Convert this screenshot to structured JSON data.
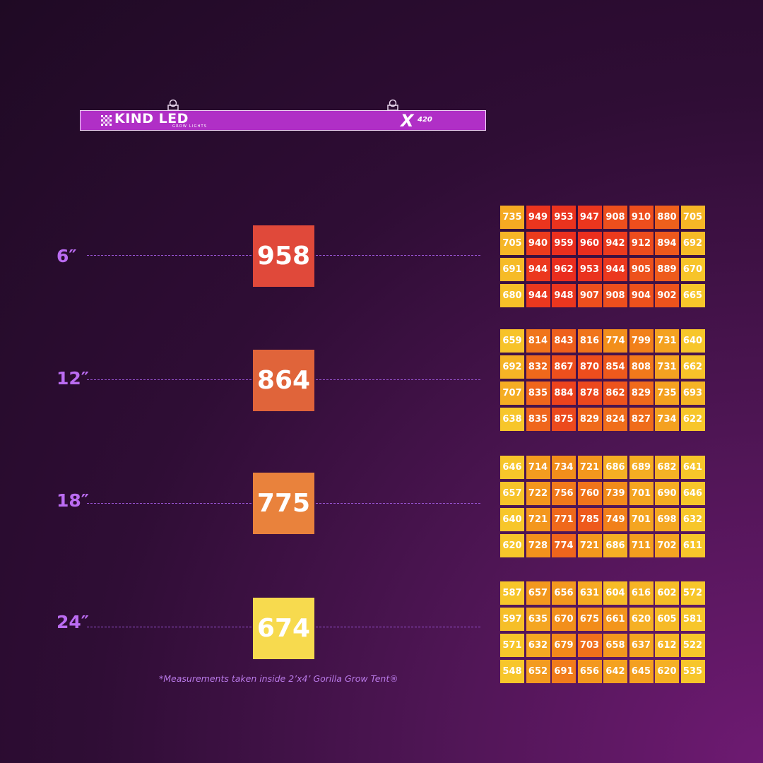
{
  "fixture": {
    "brand": "KIND LED",
    "brand_sub": "GROW LIGHTS",
    "model_prefix": "X",
    "model_number": "420"
  },
  "rows": [
    {
      "height": "6″",
      "average": "958",
      "average_color": "#e0493a",
      "grid": [
        [
          "735",
          "949",
          "953",
          "947",
          "908",
          "910",
          "880",
          "705"
        ],
        [
          "705",
          "940",
          "959",
          "960",
          "942",
          "912",
          "894",
          "692"
        ],
        [
          "691",
          "944",
          "962",
          "953",
          "944",
          "905",
          "889",
          "670"
        ],
        [
          "680",
          "944",
          "948",
          "907",
          "908",
          "904",
          "902",
          "665"
        ]
      ]
    },
    {
      "height": "12″",
      "average": "864",
      "average_color": "#e0643a",
      "grid": [
        [
          "659",
          "814",
          "843",
          "816",
          "774",
          "799",
          "731",
          "640"
        ],
        [
          "692",
          "832",
          "867",
          "870",
          "854",
          "808",
          "731",
          "662"
        ],
        [
          "707",
          "835",
          "884",
          "878",
          "862",
          "829",
          "735",
          "693"
        ],
        [
          "638",
          "835",
          "875",
          "829",
          "824",
          "827",
          "734",
          "622"
        ]
      ]
    },
    {
      "height": "18″",
      "average": "775",
      "average_color": "#e9823c",
      "grid": [
        [
          "646",
          "714",
          "734",
          "721",
          "686",
          "689",
          "682",
          "641"
        ],
        [
          "657",
          "722",
          "756",
          "760",
          "739",
          "701",
          "690",
          "646"
        ],
        [
          "640",
          "721",
          "771",
          "785",
          "749",
          "701",
          "698",
          "632"
        ],
        [
          "620",
          "728",
          "774",
          "721",
          "686",
          "711",
          "702",
          "611"
        ]
      ]
    },
    {
      "height": "24″",
      "average": "674",
      "average_color": "#f7da4e",
      "grid": [
        [
          "587",
          "657",
          "656",
          "631",
          "604",
          "616",
          "602",
          "572"
        ],
        [
          "597",
          "635",
          "670",
          "675",
          "661",
          "620",
          "605",
          "581"
        ],
        [
          "571",
          "632",
          "679",
          "703",
          "658",
          "637",
          "612",
          "522"
        ],
        [
          "548",
          "652",
          "691",
          "656",
          "642",
          "645",
          "620",
          "535"
        ]
      ]
    }
  ],
  "footnote": "*Measurements taken inside 2’x4’ Gorilla Grow Tent®",
  "colors": {
    "label": "#bb6cf2",
    "dash": "#9a55d6",
    "fixture": "#b02fc6",
    "cell_hot": "#ea2d1e",
    "cell_warm": "#f28a1a",
    "cell_cool": "#f7c62a"
  }
}
